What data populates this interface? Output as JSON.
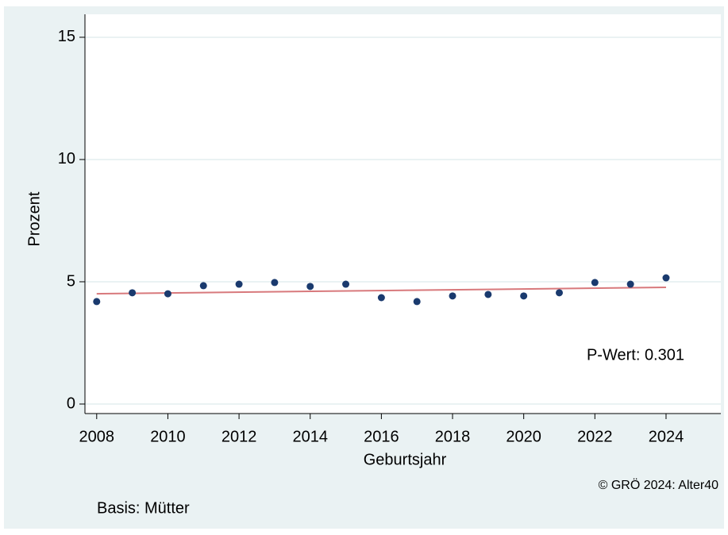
{
  "chart_data": {
    "type": "scatter",
    "x": [
      2008,
      2009,
      2010,
      2011,
      2012,
      2013,
      2014,
      2015,
      2016,
      2017,
      2018,
      2019,
      2020,
      2021,
      2022,
      2023,
      2024
    ],
    "values": [
      4.19,
      4.55,
      4.51,
      4.84,
      4.9,
      4.97,
      4.81,
      4.9,
      4.35,
      4.19,
      4.42,
      4.48,
      4.42,
      4.55,
      4.97,
      4.9,
      5.16
    ],
    "color": "#1a3a6e",
    "trend": {
      "x": [
        2008,
        2024
      ],
      "values": [
        4.51,
        4.77
      ],
      "color": "#d8797c"
    },
    "xlabel": "Geburtsjahr",
    "ylabel": "Prozent",
    "xlim": [
      2007.67,
      2025.54
    ],
    "ylim": [
      -0.39,
      15.94
    ],
    "xticks": [
      2008,
      2010,
      2012,
      2014,
      2016,
      2018,
      2020,
      2022,
      2024
    ],
    "yticks": [
      0,
      5,
      10,
      15
    ],
    "grid": true,
    "annotation": "P-Wert: 0.301",
    "credit": "© GRÖ 2024: Alter40",
    "note": "Basis: Mütter"
  }
}
